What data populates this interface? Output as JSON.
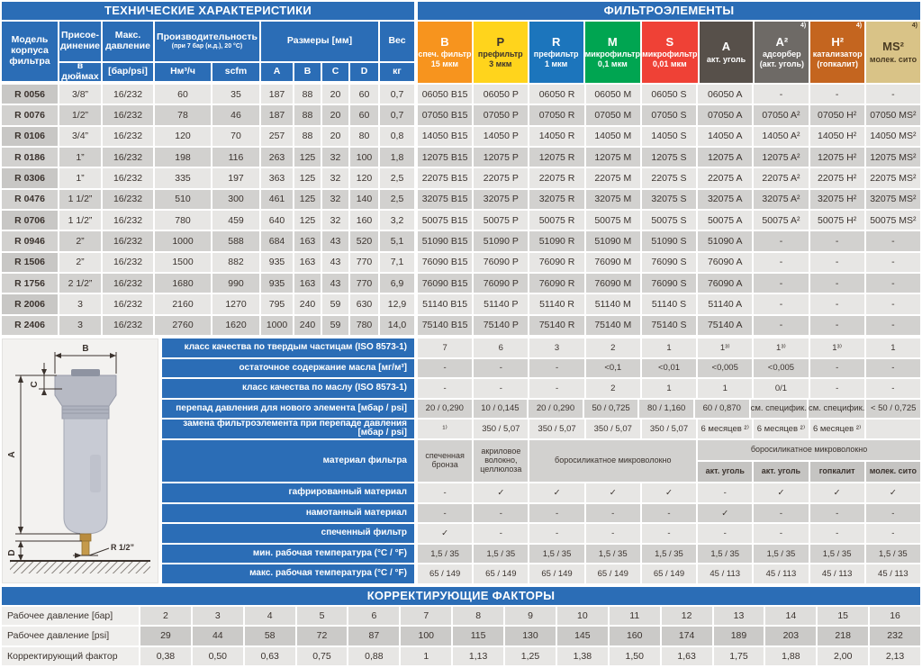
{
  "titles": {
    "tech": "ТЕХНИЧЕСКИЕ ХАРАКТЕРИСТИКИ",
    "elements": "ФИЛЬТРОЭЛЕМЕНТЫ",
    "correction": "КОРРЕКТИРУЮЩИЕ ФАКТОРЫ"
  },
  "tech_table": {
    "header": {
      "model": "Модель корпуса фильтра",
      "connection_line1": "Присое-",
      "connection_line2": "динение",
      "connection_sub": "в дюймах",
      "pressure": "Макс. давление",
      "pressure_sub": "[бар/psi]",
      "capacity": "Производительность",
      "capacity_note": "(при 7 бар (и.д.), 20 °C)",
      "capacity_sub1": "Нм³/ч",
      "capacity_sub2": "scfm",
      "dimensions": "Размеры [мм]",
      "dim_subs": [
        "A",
        "B",
        "C",
        "D"
      ],
      "weight": "Вес",
      "weight_sub": "кг"
    },
    "rows": [
      {
        "model": "R 0056",
        "values": [
          "3/8”",
          "16/232",
          "60",
          "35",
          "187",
          "88",
          "20",
          "60",
          "0,7"
        ]
      },
      {
        "model": "R 0076",
        "values": [
          "1/2”",
          "16/232",
          "78",
          "46",
          "187",
          "88",
          "20",
          "60",
          "0,7"
        ]
      },
      {
        "model": "R 0106",
        "values": [
          "3/4”",
          "16/232",
          "120",
          "70",
          "257",
          "88",
          "20",
          "80",
          "0,8"
        ]
      },
      {
        "model": "R 0186",
        "values": [
          "1”",
          "16/232",
          "198",
          "116",
          "263",
          "125",
          "32",
          "100",
          "1,8"
        ]
      },
      {
        "model": "R 0306",
        "values": [
          "1”",
          "16/232",
          "335",
          "197",
          "363",
          "125",
          "32",
          "120",
          "2,5"
        ]
      },
      {
        "model": "R 0476",
        "values": [
          "1 1/2”",
          "16/232",
          "510",
          "300",
          "461",
          "125",
          "32",
          "140",
          "2,5"
        ]
      },
      {
        "model": "R 0706",
        "values": [
          "1 1/2”",
          "16/232",
          "780",
          "459",
          "640",
          "125",
          "32",
          "160",
          "3,2"
        ]
      },
      {
        "model": "R 0946",
        "values": [
          "2”",
          "16/232",
          "1000",
          "588",
          "684",
          "163",
          "43",
          "520",
          "5,1"
        ]
      },
      {
        "model": "R 1506",
        "values": [
          "2”",
          "16/232",
          "1500",
          "882",
          "935",
          "163",
          "43",
          "770",
          "7,1"
        ]
      },
      {
        "model": "R 1756",
        "values": [
          "2 1/2”",
          "16/232",
          "1680",
          "990",
          "935",
          "163",
          "43",
          "770",
          "6,9"
        ]
      },
      {
        "model": "R 2006",
        "values": [
          "3",
          "16/232",
          "2160",
          "1270",
          "795",
          "240",
          "59",
          "630",
          "12,9"
        ]
      },
      {
        "model": "R 2406",
        "values": [
          "3",
          "16/232",
          "2760",
          "1620",
          "1000",
          "240",
          "59",
          "780",
          "14,0"
        ]
      }
    ]
  },
  "elements_table": {
    "columns": [
      {
        "code": "B",
        "note": "",
        "line1": "спеч. фильтр",
        "line2": "15 мкм",
        "bg": "#F7941E",
        "fg": "#FFFFFF"
      },
      {
        "code": "P",
        "note": "",
        "line1": "префильтр",
        "line2": "3 мкм",
        "bg": "#FFD41C",
        "fg": "#3B332E"
      },
      {
        "code": "R",
        "note": "",
        "line1": "префильтр",
        "line2": "1 мкм",
        "bg": "#1C75BC",
        "fg": "#FFFFFF"
      },
      {
        "code": "M",
        "note": "",
        "line1": "микрофильтр",
        "line2": "0,1 мкм",
        "bg": "#00A551",
        "fg": "#FFFFFF"
      },
      {
        "code": "S",
        "note": "",
        "line1": "микрофильтр",
        "line2": "0,01 мкм",
        "bg": "#EF4136",
        "fg": "#FFFFFF"
      },
      {
        "code": "A",
        "note": "",
        "line1": "акт. уголь",
        "line2": "",
        "bg": "#57504A",
        "fg": "#FFFFFF"
      },
      {
        "code": "A²",
        "note": "4)",
        "line1": "адсорбер",
        "line2": "(акт. уголь)",
        "bg": "#6E6A66",
        "fg": "#FFFFFF"
      },
      {
        "code": "H²",
        "note": "4)",
        "line1": "катализатор",
        "line2": "(гопкалит)",
        "bg": "#C4651F",
        "fg": "#FFFFFF"
      },
      {
        "code": "MS²",
        "note": "4)",
        "line1": "молек. сито",
        "line2": "",
        "bg": "#D9C387",
        "fg": "#4A3B22"
      }
    ],
    "rows": [
      [
        "06050 B15",
        "06050 P",
        "06050 R",
        "06050 M",
        "06050 S",
        "06050 A",
        "-",
        "-",
        "-"
      ],
      [
        "07050 B15",
        "07050 P",
        "07050 R",
        "07050 M",
        "07050 S",
        "07050 A",
        "07050 A²",
        "07050 H²",
        "07050 MS²"
      ],
      [
        "14050 B15",
        "14050 P",
        "14050 R",
        "14050 M",
        "14050 S",
        "14050 A",
        "14050 A²",
        "14050 H²",
        "14050 MS²"
      ],
      [
        "12075 B15",
        "12075 P",
        "12075 R",
        "12075 M",
        "12075 S",
        "12075 A",
        "12075 A²",
        "12075 H²",
        "12075 MS²"
      ],
      [
        "22075 B15",
        "22075 P",
        "22075 R",
        "22075 M",
        "22075 S",
        "22075 A",
        "22075 A²",
        "22075 H²",
        "22075 MS²"
      ],
      [
        "32075 B15",
        "32075 P",
        "32075 R",
        "32075 M",
        "32075 S",
        "32075 A",
        "32075 A²",
        "32075 H²",
        "32075 MS²"
      ],
      [
        "50075 B15",
        "50075 P",
        "50075 R",
        "50075 M",
        "50075 S",
        "50075 A",
        "50075 A²",
        "50075 H²",
        "50075 MS²"
      ],
      [
        "51090 B15",
        "51090 P",
        "51090 R",
        "51090 M",
        "51090 S",
        "51090 A",
        "-",
        "-",
        "-"
      ],
      [
        "76090 B15",
        "76090 P",
        "76090 R",
        "76090 M",
        "76090 S",
        "76090 A",
        "-",
        "-",
        "-"
      ],
      [
        "76090 B15",
        "76090 P",
        "76090 R",
        "76090 M",
        "76090 S",
        "76090 A",
        "-",
        "-",
        "-"
      ],
      [
        "51140 B15",
        "51140 P",
        "51140 R",
        "51140 M",
        "51140 S",
        "51140 A",
        "-",
        "-",
        "-"
      ],
      [
        "75140 B15",
        "75140 P",
        "75140 R",
        "75140 M",
        "75140 S",
        "75140 A",
        "-",
        "-",
        "-"
      ]
    ]
  },
  "specs": {
    "rows_top": [
      {
        "label": "класс качества по твердым частицам (ISO 8573-1)",
        "values": [
          "7",
          "6",
          "3",
          "2",
          "1",
          "1³⁾",
          "1³⁾",
          "1³⁾",
          "1"
        ]
      },
      {
        "label": "остаточное содержание масла [мг/м³]",
        "values": [
          "-",
          "-",
          "-",
          "<0,1",
          "<0,01",
          "<0,005",
          "<0,005",
          "-",
          "-"
        ]
      },
      {
        "label": "класс качества по маслу (ISO 8573-1)",
        "values": [
          "-",
          "-",
          "-",
          "2",
          "1",
          "1",
          "0/1",
          "-",
          "-"
        ]
      },
      {
        "label": "перепад давления для нового элемента [мбар / psi]",
        "values": [
          "20 / 0,290",
          "10 / 0,145",
          "20 / 0,290",
          "50 / 0,725",
          "80 / 1,160",
          "60 / 0,870",
          "см. специфик.",
          "см. специфик.",
          "< 50 / 0,725"
        ]
      },
      {
        "label": "замена фильтроэлемента при перепаде давления [мбар / psi]",
        "values": [
          "¹⁾",
          "350 / 5,07",
          "350 / 5,07",
          "350 / 5,07",
          "350 / 5,07",
          "6 месяцев ²⁾",
          "6 месяцев ²⁾",
          "6 месяцев ²⁾",
          ""
        ]
      }
    ],
    "material": {
      "label": "материал фильтра",
      "b": "спеченная бронза",
      "p": "акриловое волокно, целлюлоза",
      "rms": "боросиликатное микроволокно",
      "right_top": "боросиликатное микроволокно",
      "right_subs": [
        "акт. уголь",
        "акт. уголь",
        "гопкалит",
        "молек. сито"
      ]
    },
    "rows_bottom": [
      {
        "label": "гафрированный материал",
        "values": [
          "-",
          "✓",
          "✓",
          "✓",
          "✓",
          "-",
          "✓",
          "✓",
          "✓"
        ]
      },
      {
        "label": "намотанный материал",
        "values": [
          "-",
          "-",
          "-",
          "-",
          "-",
          "✓",
          "-",
          "-",
          "-"
        ]
      },
      {
        "label": "спеченный фильтр",
        "values": [
          "✓",
          "-",
          "-",
          "-",
          "-",
          "-",
          "-",
          "-",
          "-"
        ]
      },
      {
        "label": "мин. рабочая температура (°C / °F)",
        "values": [
          "1,5 / 35",
          "1,5 / 35",
          "1,5 / 35",
          "1,5 / 35",
          "1,5 / 35",
          "1,5 / 35",
          "1,5 / 35",
          "1,5 / 35",
          "1,5 / 35"
        ]
      },
      {
        "label": "макс. рабочая температура  (°C / °F)",
        "values": [
          "65 / 149",
          "65 / 149",
          "65 / 149",
          "65 / 149",
          "65 / 149",
          "45 / 113",
          "45 / 113",
          "45 / 113",
          "45 / 113"
        ]
      }
    ]
  },
  "correction": {
    "rows": [
      {
        "label": "Рабочее давление [бар]",
        "values": [
          "2",
          "3",
          "4",
          "5",
          "6",
          "7",
          "8",
          "9",
          "10",
          "11",
          "12",
          "13",
          "14",
          "15",
          "16"
        ]
      },
      {
        "label": "Рабочее давление [psi]",
        "values": [
          "29",
          "44",
          "58",
          "72",
          "87",
          "100",
          "115",
          "130",
          "145",
          "160",
          "174",
          "189",
          "203",
          "218",
          "232"
        ]
      },
      {
        "label": "Корректирующий фактор",
        "values": [
          "0,38",
          "0,50",
          "0,63",
          "0,75",
          "0,88",
          "1",
          "1,13",
          "1,25",
          "1,38",
          "1,50",
          "1,63",
          "1,75",
          "1,88",
          "2,00",
          "2,13"
        ]
      }
    ]
  },
  "diagram": {
    "dim_a": "A",
    "dim_b": "B",
    "dim_c": "C",
    "dim_d": "D",
    "drain": "R 1/2”"
  }
}
